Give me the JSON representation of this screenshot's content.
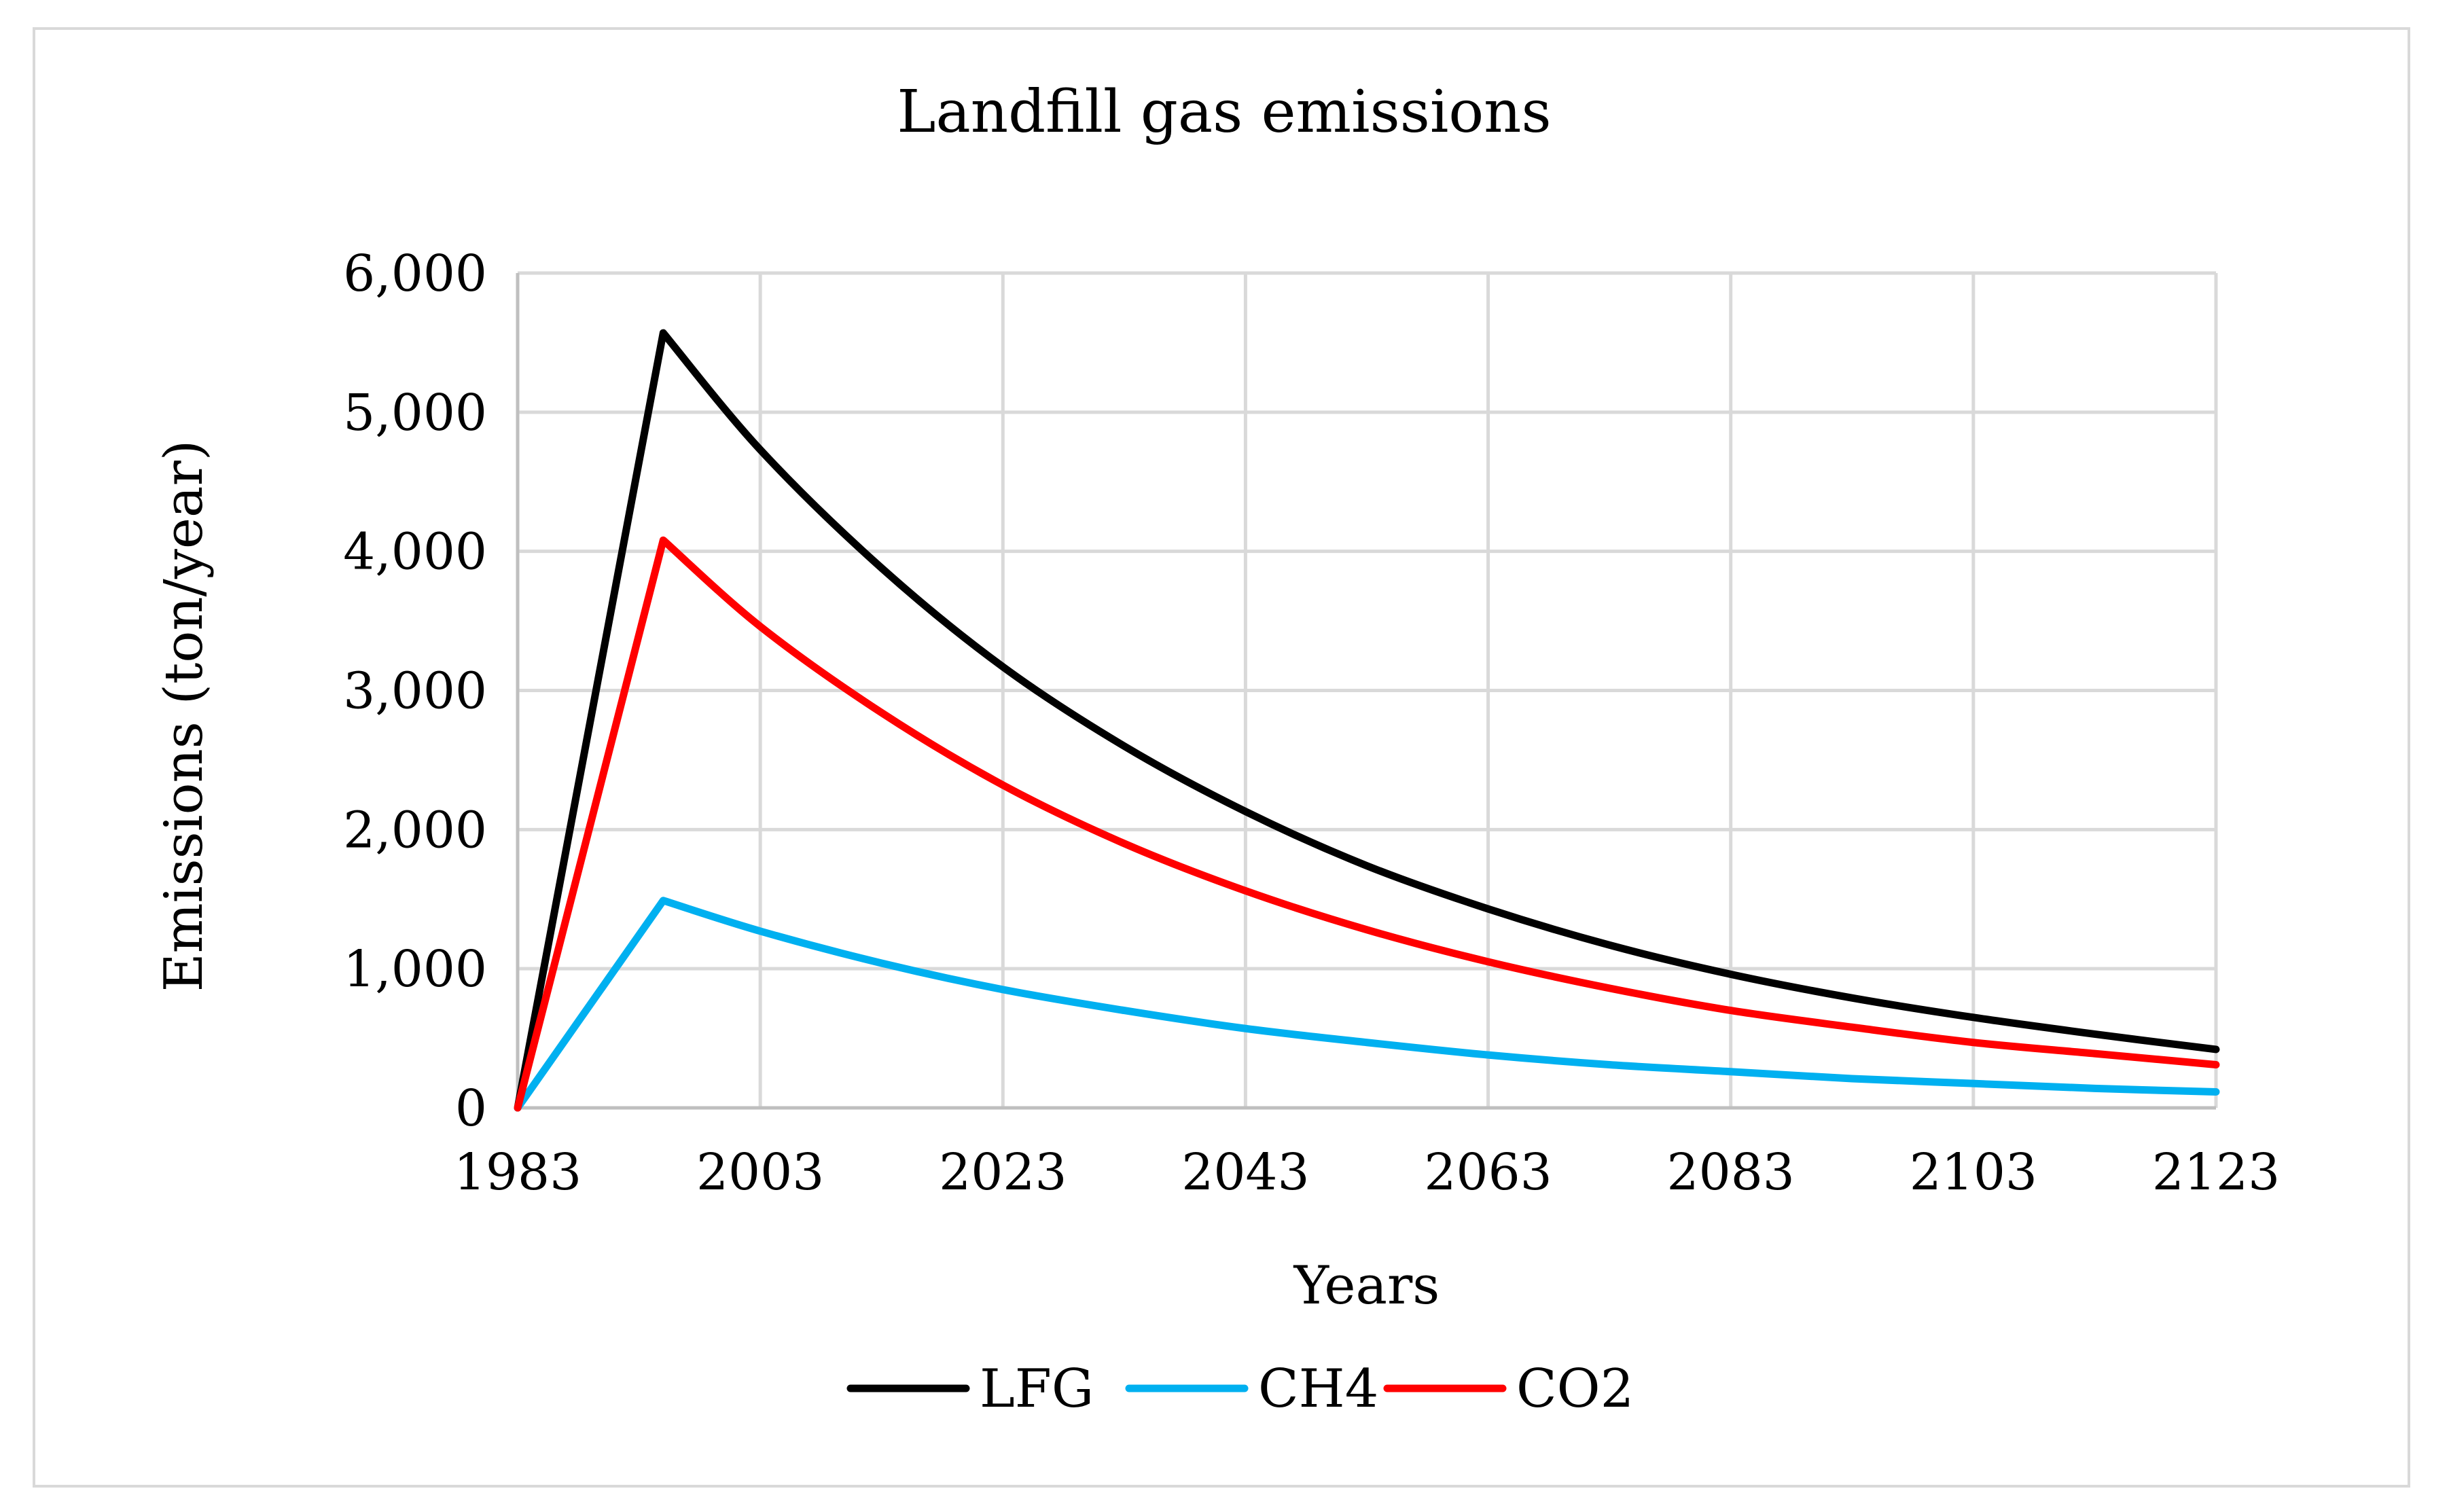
{
  "chart_data": {
    "type": "line",
    "title": "Landfill gas emissions",
    "xlabel": "Years",
    "ylabel": "Emissions (ton/year)",
    "xlim": [
      1983,
      2123
    ],
    "ylim": [
      0,
      6000
    ],
    "x_ticks": [
      1983,
      2003,
      2023,
      2043,
      2063,
      2083,
      2103,
      2123
    ],
    "x_tick_labels": [
      "1983",
      "2003",
      "2023",
      "2043",
      "2063",
      "2083",
      "2103",
      "2123"
    ],
    "y_ticks": [
      0,
      1000,
      2000,
      3000,
      4000,
      5000,
      6000
    ],
    "y_tick_labels": [
      "0",
      "1,000",
      "2,000",
      "3,000",
      "4,000",
      "5,000",
      "6,000"
    ],
    "grid": true,
    "legend_position": "bottom",
    "x": [
      1983,
      1995,
      2003,
      2013,
      2023,
      2033,
      2043,
      2053,
      2063,
      2073,
      2083,
      2093,
      2103,
      2113,
      2123
    ],
    "series": [
      {
        "name": "LFG",
        "color": "#000000",
        "values": [
          0,
          5570,
          4730,
          3880,
          3170,
          2600,
          2130,
          1740,
          1430,
          1170,
          960,
          790,
          650,
          530,
          420
        ]
      },
      {
        "name": "CH4",
        "color": "#00b0f0",
        "values": [
          0,
          1490,
          1270,
          1040,
          850,
          700,
          570,
          470,
          380,
          310,
          260,
          210,
          175,
          140,
          115
        ]
      },
      {
        "name": "CO2",
        "color": "#ff0000",
        "values": [
          0,
          4080,
          3460,
          2840,
          2320,
          1900,
          1560,
          1280,
          1050,
          860,
          700,
          580,
          470,
          390,
          310
        ]
      }
    ]
  }
}
